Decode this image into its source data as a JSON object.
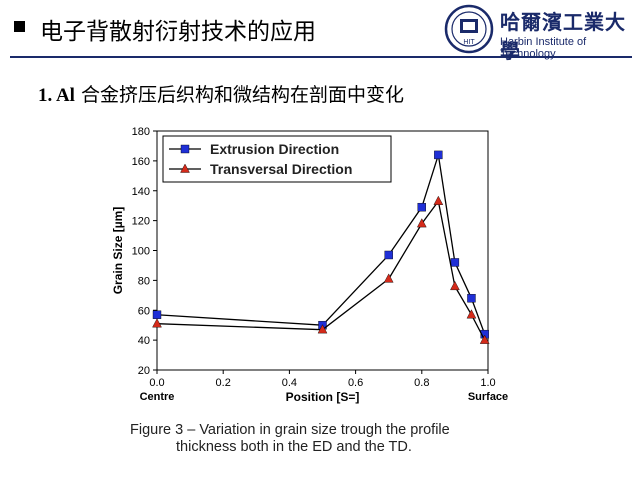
{
  "header": {
    "title": "电子背散射衍射技术的应用",
    "logo_cn": "哈爾濱工業大學",
    "logo_en": "Harbin Institute of Technology",
    "logo_seal_text": "HIT"
  },
  "subtitle": {
    "number": "1.  Al",
    "text": " 合金挤压后织构和微结构在剖面中变化"
  },
  "colors": {
    "series1": "#1f2fd6",
    "series2": "#d42a1a",
    "line": "#000000",
    "brand": "#1a2a6a"
  },
  "chart_data": {
    "type": "line",
    "ylabel": "Grain Size [µm]",
    "xlabel": "Position [S=]",
    "xlim": [
      0,
      1.0
    ],
    "ylim": [
      20,
      180
    ],
    "xticks": [
      "0.0",
      "0.2",
      "0.4",
      "0.6",
      "0.8",
      "1.0"
    ],
    "yticks": [
      "20",
      "40",
      "60",
      "80",
      "100",
      "120",
      "140",
      "160",
      "180"
    ],
    "x_end_labels": {
      "left": "Centre",
      "right": "Surface"
    },
    "legend_position": "top-left",
    "grid": false,
    "series": [
      {
        "name": "Extrusion Direction",
        "marker": "square",
        "x": [
          0.0,
          0.5,
          0.7,
          0.8,
          0.85,
          0.9,
          0.95,
          0.99
        ],
        "y": [
          57,
          50,
          97,
          129,
          164,
          92,
          68,
          44
        ]
      },
      {
        "name": "Transversal Direction",
        "marker": "triangle",
        "x": [
          0.0,
          0.5,
          0.7,
          0.8,
          0.85,
          0.9,
          0.95,
          0.99
        ],
        "y": [
          51,
          47,
          81,
          118,
          133,
          76,
          57,
          40
        ]
      }
    ]
  },
  "caption": {
    "line1": "Figure 3 – Variation in grain size trough the profile",
    "line2": "thickness both in the ED and the TD."
  }
}
